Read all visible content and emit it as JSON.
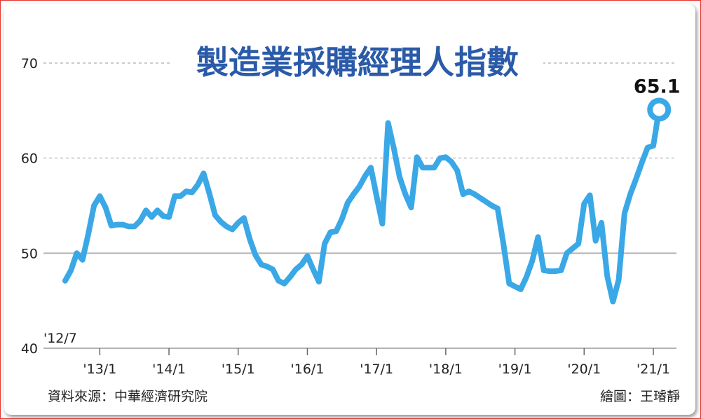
{
  "chart_data": {
    "type": "line",
    "title": "製造業採購經理人指數",
    "xlabel": "",
    "ylabel": "",
    "ylim": [
      40,
      72
    ],
    "yticks": [
      40,
      50,
      60,
      70
    ],
    "xticks": [
      "'13/1",
      "'14/1",
      "'15/1",
      "'16/1",
      "'17/1",
      "'18/1",
      "'19/1",
      "'20/1",
      "'21/1"
    ],
    "start_label": "'12/7",
    "grid": "horizontal",
    "line_color": "#3aa8e6",
    "series": [
      {
        "x": [
          "2012-07",
          "2012-08",
          "2012-09",
          "2012-10",
          "2012-11",
          "2012-12",
          "2013-01",
          "2013-02",
          "2013-03",
          "2013-04",
          "2013-05",
          "2013-06",
          "2013-07",
          "2013-08",
          "2013-09",
          "2013-10",
          "2013-11",
          "2013-12",
          "2014-01",
          "2014-02",
          "2014-03",
          "2014-04",
          "2014-05",
          "2014-06",
          "2014-07",
          "2014-08",
          "2014-09",
          "2014-10",
          "2014-11",
          "2014-12",
          "2015-01",
          "2015-02",
          "2015-03",
          "2015-04",
          "2015-05",
          "2015-06",
          "2015-07",
          "2015-08",
          "2015-09",
          "2015-10",
          "2015-11",
          "2015-12",
          "2016-01",
          "2016-02",
          "2016-03",
          "2016-04",
          "2016-05",
          "2016-06",
          "2016-07",
          "2016-08",
          "2016-09",
          "2016-10",
          "2016-11",
          "2016-12",
          "2017-01",
          "2017-02",
          "2017-03",
          "2017-04",
          "2017-05",
          "2017-06",
          "2017-07",
          "2017-08",
          "2017-09",
          "2017-10",
          "2017-11",
          "2017-12",
          "2018-01",
          "2018-02",
          "2018-03",
          "2018-04",
          "2018-05",
          "2018-06",
          "2018-07",
          "2018-08",
          "2018-09",
          "2018-10",
          "2018-11",
          "2018-12",
          "2019-01",
          "2019-02",
          "2019-03",
          "2019-04",
          "2019-05",
          "2019-06",
          "2019-07",
          "2019-08",
          "2019-09",
          "2019-10",
          "2019-11",
          "2019-12",
          "2020-01",
          "2020-02",
          "2020-03",
          "2020-04",
          "2020-05",
          "2020-06",
          "2020-07",
          "2020-08",
          "2020-09",
          "2020-10",
          "2020-11",
          "2020-12",
          "2021-01",
          "2021-02"
        ],
        "values": [
          47.1,
          48.2,
          50.0,
          49.3,
          52.0,
          55.0,
          56.0,
          54.8,
          52.9,
          53.0,
          53.0,
          52.8,
          52.8,
          53.4,
          54.5,
          53.8,
          54.5,
          53.9,
          53.8,
          56.0,
          56.0,
          56.5,
          56.4,
          57.2,
          58.4,
          56.3,
          54.0,
          53.3,
          52.8,
          52.5,
          53.2,
          53.7,
          51.5,
          49.8,
          48.8,
          48.6,
          48.3,
          47.1,
          46.8,
          47.5,
          48.3,
          48.8,
          49.7,
          48.3,
          47.0,
          51.0,
          52.2,
          52.3,
          53.6,
          55.3,
          56.2,
          57.0,
          58.1,
          59.0,
          56.0,
          53.1,
          63.7,
          61.0,
          58.0,
          56.2,
          54.8,
          60.1,
          59.0,
          59.0,
          59.0,
          60.0,
          60.1,
          59.6,
          58.7,
          56.2,
          56.5,
          56.2,
          55.8,
          55.4,
          55.0,
          54.7,
          51.0,
          46.8,
          46.5,
          46.2,
          47.5,
          49.2,
          51.7,
          48.2,
          48.1,
          48.1,
          48.2,
          50.0,
          50.5,
          51.0,
          55.2,
          56.1,
          51.3,
          53.2,
          47.6,
          44.9,
          47.2,
          54.2,
          56.2,
          57.8,
          59.5,
          61.1,
          61.3,
          65.1
        ]
      }
    ],
    "annotations": [
      {
        "x": "2021-02",
        "y": 65.1,
        "label": "65.1"
      }
    ]
  },
  "footer": {
    "source": "資料來源：中華經濟研究院",
    "credit": "繪圖：王璿靜"
  }
}
